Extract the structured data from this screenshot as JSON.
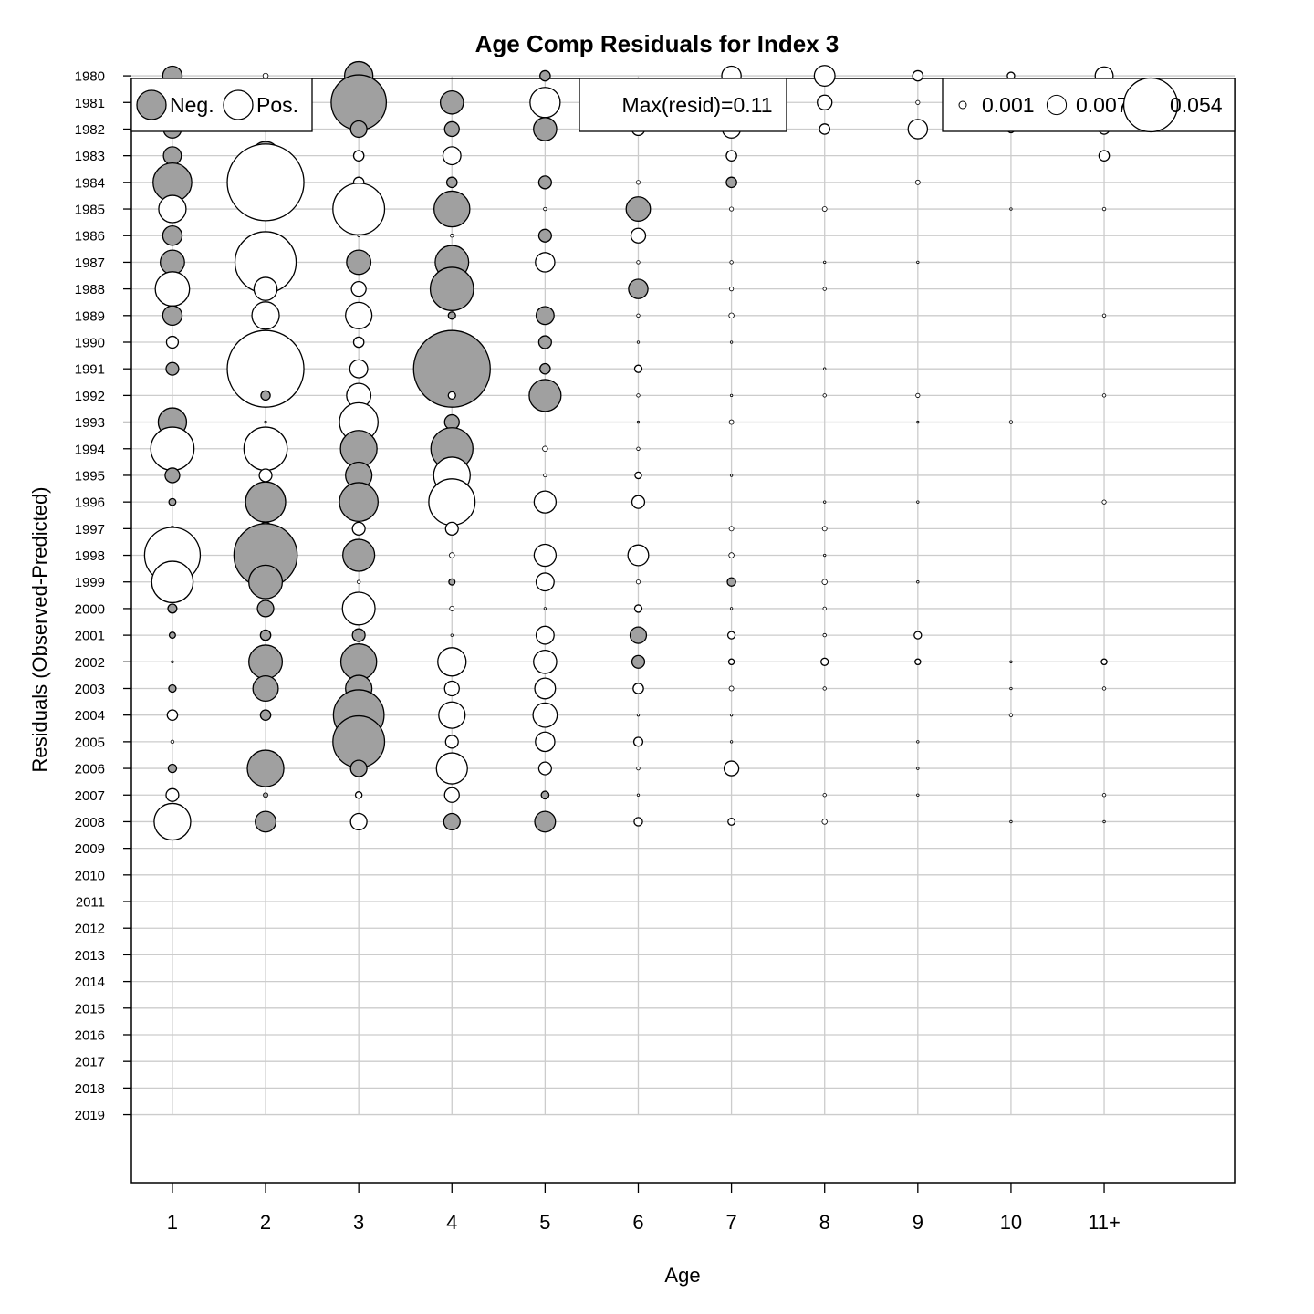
{
  "chart_data": {
    "type": "bubble",
    "title": "Age Comp Residuals for Index 3",
    "xlabel": "Age",
    "ylabel": "Residuals (Observed-Predicted)",
    "x_categories": [
      "1",
      "2",
      "3",
      "4",
      "5",
      "6",
      "7",
      "8",
      "9",
      "10",
      "11+"
    ],
    "years": [
      1980,
      1981,
      1982,
      1983,
      1984,
      1985,
      1986,
      1987,
      1988,
      1989,
      1990,
      1991,
      1992,
      1993,
      1994,
      1995,
      1996,
      1997,
      1998,
      1999,
      2000,
      2001,
      2002,
      2003,
      2004,
      2005,
      2006,
      2007,
      2008,
      2009,
      2010,
      2011,
      2012,
      2013,
      2014,
      2015,
      2016,
      2017,
      2018,
      2019
    ],
    "max_resid_label": "Max(resid)=0.11",
    "max_resid": 0.11,
    "legend_sign": {
      "neg_label": "Neg.",
      "pos_label": "Pos.",
      "neg_color": "#a0a0a0",
      "pos_color": "#ffffff"
    },
    "legend_size": [
      {
        "value": 0.001,
        "label": "0.001"
      },
      {
        "value": 0.007,
        "label": "0.007"
      },
      {
        "value": 0.054,
        "label": "0.054"
      }
    ],
    "grid": true,
    "residuals": {
      "1980": [
        -0.007,
        0.0005,
        -0.015,
        0,
        -0.002,
        0,
        0.007,
        0.008,
        0.002,
        0.001,
        0.006
      ],
      "1981": [
        -0.006,
        0.0004,
        -0.057,
        -0.01,
        0.017,
        0.02,
        0.003,
        0.004,
        0.0003,
        0.001,
        0.007
      ],
      "1982": [
        -0.006,
        0.0004,
        -0.005,
        -0.004,
        -0.01,
        0.003,
        0.006,
        0.002,
        0.007,
        0.001,
        0.002
      ],
      "1983": [
        -0.006,
        -0.015,
        0.002,
        0.006,
        0,
        0,
        0.002,
        0,
        0,
        0,
        0.002
      ],
      "1984": [
        -0.028,
        0.11,
        0.002,
        -0.002,
        -0.003,
        0.0003,
        -0.002,
        0,
        0.0004,
        0,
        0
      ],
      "1985": [
        0.014,
        0,
        0.05,
        -0.024,
        0.0002,
        -0.011,
        0.0003,
        0.0004,
        0,
        0.0001,
        0.0002
      ],
      "1986": [
        -0.007,
        0.0006,
        0.0001,
        0.0002,
        -0.003,
        0.004,
        0,
        0,
        0,
        0,
        0
      ],
      "1987": [
        -0.011,
        0.07,
        -0.011,
        -0.021,
        0.007,
        0.0002,
        0.0002,
        0.0001,
        0.0001,
        0,
        0
      ],
      "1988": [
        0.022,
        0.01,
        0.004,
        -0.035,
        0,
        -0.007,
        0.0003,
        0.0002,
        0,
        0,
        0
      ],
      "1989": [
        -0.007,
        0.014,
        0.013,
        -0.001,
        -0.006,
        0.0002,
        0.0005,
        0,
        0,
        0,
        0.0002
      ],
      "1990": [
        0.0026,
        -0.0004,
        0.002,
        0.0002,
        -0.003,
        0.0001,
        0.0001,
        0,
        0,
        0,
        0
      ],
      "1991": [
        -0.003,
        0.11,
        0.006,
        -0.11,
        -0.002,
        0.001,
        0,
        0.0001,
        0,
        0,
        0
      ],
      "1992": [
        0,
        -0.0016,
        0.011,
        0.001,
        -0.019,
        0.0002,
        0.0001,
        0.0002,
        0.0003,
        0,
        0.0002
      ],
      "1993": [
        -0.015,
        0.0001,
        0.028,
        -0.004,
        0,
        0.0001,
        0.0004,
        0,
        0.0001,
        0.0002,
        0
      ],
      "1994": [
        0.035,
        0.035,
        -0.025,
        -0.033,
        0.0005,
        0.0002,
        0,
        0,
        0,
        0,
        0
      ],
      "1995": [
        -0.004,
        0.003,
        -0.013,
        0.025,
        0.0002,
        0.0008,
        0.0001,
        0,
        0,
        0,
        0
      ],
      "1996": [
        -0.0009,
        -0.03,
        -0.028,
        0.04,
        0.009,
        0.003,
        0,
        0.0001,
        0.0001,
        0,
        0.0003
      ],
      "1997": [
        -0.0005,
        -0.003,
        0.003,
        0.003,
        0,
        0,
        0.0004,
        0.0004,
        0,
        0,
        0
      ],
      "1998": [
        0.058,
        -0.075,
        -0.019,
        0.0005,
        0.009,
        0.008,
        0.0005,
        0.0001,
        0,
        0,
        0
      ],
      "1999": [
        0.032,
        -0.021,
        0.0002,
        -0.0007,
        0.006,
        0.0003,
        -0.0013,
        0.0005,
        0.0001,
        0,
        0
      ],
      "2000": [
        -0.0015,
        -0.005,
        0.02,
        0.0004,
        0.0001,
        0.001,
        0.0001,
        0.0002,
        0,
        0,
        0
      ],
      "2001": [
        -0.0007,
        -0.002,
        -0.003,
        0.0001,
        0.006,
        -0.005,
        0.001,
        0.0002,
        0.001,
        0,
        0
      ],
      "2002": [
        0.0001,
        -0.021,
        -0.024,
        0.015,
        0.01,
        -0.003,
        0.0006,
        0.001,
        0.0006,
        0.0001,
        0.0006
      ],
      "2003": [
        -0.001,
        -0.012,
        -0.013,
        0.004,
        0.008,
        0.002,
        0.0004,
        0.0002,
        0,
        0.0001,
        0.0002
      ],
      "2004": [
        0.002,
        -0.002,
        -0.048,
        0.013,
        0.011,
        0.0001,
        0.0001,
        0,
        0,
        0.0002,
        0
      ],
      "2005": [
        0.0002,
        0,
        -0.05,
        0.003,
        0.007,
        0.0015,
        0.0001,
        0,
        0.0001,
        0,
        0
      ],
      "2006": [
        -0.0013,
        -0.025,
        -0.005,
        0.018,
        0.003,
        0.0002,
        0.004,
        0,
        0.0001,
        0,
        0
      ],
      "2007": [
        0.003,
        -0.0004,
        0.0008,
        0.004,
        -0.0011,
        0.0001,
        0,
        0.0002,
        0.0001,
        0,
        0.0002
      ],
      "2008": [
        0.025,
        -0.008,
        0.005,
        -0.005,
        -0.008,
        0.0013,
        0.0009,
        0.0005,
        0,
        0.0001,
        0.0001
      ]
    },
    "xlim": [
      0.56,
      12.4
    ],
    "ylim_index": [
      0,
      41.45
    ],
    "colors": {
      "negative_fill": "#a0a0a0",
      "positive_fill": "#ffffff",
      "grid": "#cccccc",
      "stroke": "#000000"
    }
  }
}
